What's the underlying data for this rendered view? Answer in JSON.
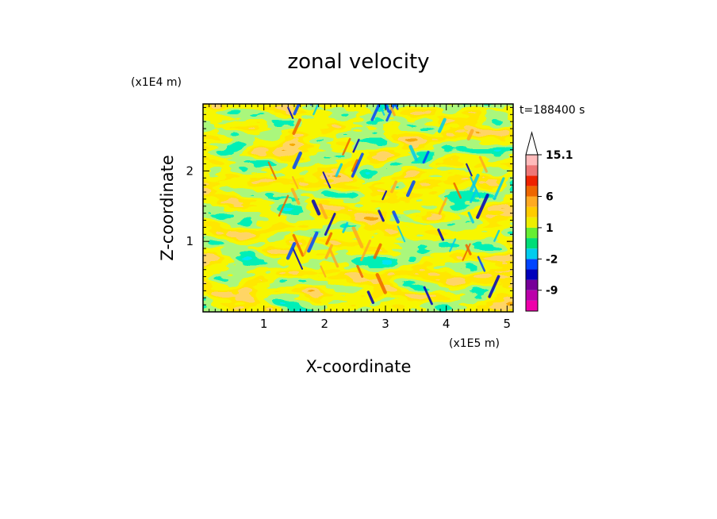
{
  "chart_data": {
    "type": "heatmap",
    "title": "zonal velocity",
    "xlabel": "X-coordinate",
    "ylabel": "Z-coordinate",
    "x_unit": "(x1E5 m)",
    "y_unit": "(x1E4 m)",
    "time_label": "t=188400  s",
    "xlim": [
      0,
      5.1
    ],
    "ylim": [
      0,
      2.95
    ],
    "x_ticks": [
      1,
      2,
      3,
      4,
      5
    ],
    "y_ticks": [
      1,
      2
    ],
    "colorbar": {
      "levels": [
        -15,
        -12,
        -9,
        -6,
        -3,
        -2,
        -1,
        0,
        1,
        2,
        3,
        6,
        9,
        12,
        15.1
      ],
      "colors": [
        "#ee00aa",
        "#bb00aa",
        "#770099",
        "#0000bb",
        "#0044ff",
        "#00ccee",
        "#00dd77",
        "#66ee33",
        "#eeee00",
        "#ffcc00",
        "#ffaa22",
        "#ee6600",
        "#ee2200",
        "#ee7777",
        "#ffbbbb"
      ],
      "labels": [
        "15.1",
        "6",
        "1",
        "-2",
        "-9"
      ],
      "label_values": [
        15.1,
        6,
        1,
        -2,
        -9
      ],
      "extend": "max"
    }
  }
}
